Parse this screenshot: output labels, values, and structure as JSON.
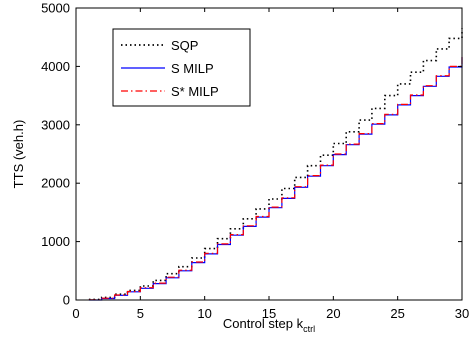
{
  "chart_data": {
    "type": "line",
    "xlabel": "Control step k",
    "xlabel_subscript": "ctrl",
    "ylabel": "TTS (veh.h)",
    "xlim": [
      0,
      30
    ],
    "ylim": [
      0,
      5000
    ],
    "xticks": [
      0,
      5,
      10,
      15,
      20,
      25,
      30
    ],
    "yticks": [
      0,
      1000,
      2000,
      3000,
      4000,
      5000
    ],
    "grid": false,
    "legend_position": "top-left",
    "x": [
      1,
      2,
      3,
      4,
      5,
      6,
      7,
      8,
      9,
      10,
      11,
      12,
      13,
      14,
      15,
      16,
      17,
      18,
      19,
      20,
      21,
      22,
      23,
      24,
      25,
      26,
      27,
      28,
      29,
      30
    ],
    "series": [
      {
        "name": "SQP",
        "color": "#000000",
        "style": "dotted",
        "values": [
          10,
          45,
          100,
          165,
          240,
          335,
          450,
          570,
          720,
          880,
          1050,
          1220,
          1390,
          1560,
          1730,
          1910,
          2100,
          2300,
          2480,
          2680,
          2880,
          3080,
          3280,
          3500,
          3700,
          3900,
          4100,
          4300,
          4480,
          4650
        ]
      },
      {
        "name": "S MILP",
        "color": "#0000ff",
        "style": "solid",
        "values": [
          0,
          25,
          80,
          140,
          200,
          280,
          380,
          500,
          640,
          790,
          950,
          1110,
          1260,
          1420,
          1580,
          1740,
          1930,
          2120,
          2300,
          2490,
          2660,
          2840,
          3010,
          3170,
          3340,
          3500,
          3660,
          3830,
          3990,
          4160
        ]
      },
      {
        "name": "S* MILP",
        "color": "#ff0000",
        "style": "dashdot",
        "values": [
          2,
          30,
          85,
          145,
          210,
          290,
          390,
          510,
          650,
          800,
          960,
          1120,
          1270,
          1430,
          1590,
          1750,
          1940,
          2130,
          2310,
          2500,
          2670,
          2850,
          3020,
          3180,
          3350,
          3510,
          3670,
          3840,
          4000,
          4170
        ]
      }
    ]
  }
}
